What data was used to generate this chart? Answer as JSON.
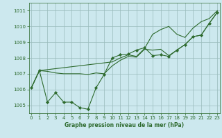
{
  "background_color": "#cce8ee",
  "grid_color": "#99bbbb",
  "line_color": "#2d6a2d",
  "marker_color": "#2d6a2d",
  "xlabel": "Graphe pression niveau de la mer (hPa)",
  "ylim": [
    1004.5,
    1011.5
  ],
  "yticks": [
    1005,
    1006,
    1007,
    1008,
    1009,
    1010,
    1011
  ],
  "xlim": [
    -0.3,
    23.3
  ],
  "xticks": [
    0,
    1,
    2,
    3,
    4,
    5,
    6,
    7,
    8,
    9,
    10,
    11,
    12,
    13,
    14,
    15,
    16,
    17,
    18,
    19,
    20,
    21,
    22,
    23
  ],
  "series1_x": [
    0,
    1,
    2,
    3,
    4,
    5,
    6,
    7,
    8,
    9,
    10,
    11,
    12,
    13,
    14,
    15,
    16,
    17,
    18,
    19,
    20,
    21,
    22,
    23
  ],
  "series1_y": [
    1006.1,
    1007.2,
    1005.2,
    1005.8,
    1005.2,
    1005.2,
    1004.85,
    1004.75,
    1006.1,
    1006.95,
    1008.0,
    1008.2,
    1008.25,
    1008.5,
    1008.65,
    1008.15,
    1008.2,
    1008.1,
    1008.5,
    1008.85,
    1009.35,
    1009.45,
    1010.2,
    1010.9
  ],
  "series2_x": [
    0,
    1,
    2,
    3,
    4,
    5,
    6,
    7,
    8,
    9,
    10,
    11,
    12,
    13,
    14,
    15,
    16,
    17,
    18,
    19,
    20,
    21,
    22,
    23
  ],
  "series2_y": [
    1006.1,
    1007.2,
    1007.15,
    1007.05,
    1007.0,
    1007.0,
    1007.0,
    1006.95,
    1007.05,
    1007.0,
    1007.5,
    1007.85,
    1008.1,
    1008.05,
    1008.55,
    1008.5,
    1008.55,
    1008.15,
    1008.5,
    1008.85,
    1009.35,
    1009.45,
    1010.2,
    1010.9
  ],
  "series3_x": [
    0,
    1,
    10,
    11,
    12,
    13,
    14,
    15,
    16,
    17,
    18,
    19,
    20,
    21,
    22,
    23
  ],
  "series3_y": [
    1006.1,
    1007.2,
    1007.75,
    1008.0,
    1008.2,
    1008.1,
    1008.6,
    1009.5,
    1009.8,
    1010.0,
    1009.5,
    1009.3,
    1009.9,
    1010.3,
    1010.5,
    1011.0
  ]
}
